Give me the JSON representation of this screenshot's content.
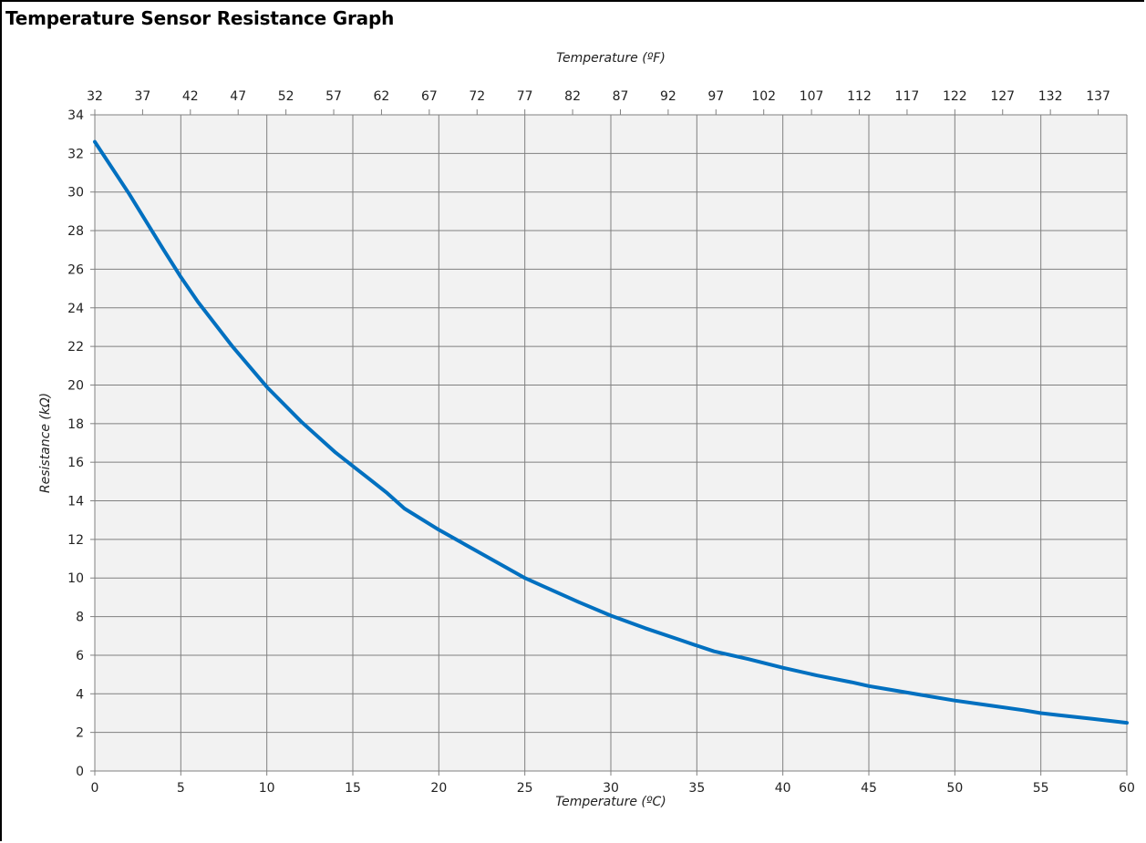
{
  "chart_data": {
    "type": "line",
    "title": "Temperature Sensor Resistance Graph",
    "xlabel": "Temperature (ºC)",
    "x2label": "Temperature (ºF)",
    "ylabel": "Resistance (kΩ)",
    "xlim": [
      0,
      60
    ],
    "ylim": [
      0,
      34
    ],
    "x_ticks": [
      "0",
      "5",
      "10",
      "15",
      "20",
      "25",
      "30",
      "35",
      "40",
      "45",
      "50",
      "55",
      "60"
    ],
    "y_ticks": [
      "0",
      "2",
      "4",
      "6",
      "8",
      "10",
      "12",
      "14",
      "16",
      "18",
      "20",
      "22",
      "24",
      "26",
      "28",
      "30",
      "32",
      "34"
    ],
    "x2_ticks": [
      "32",
      "37",
      "42",
      "47",
      "52",
      "57",
      "62",
      "67",
      "72",
      "77",
      "82",
      "87",
      "92",
      "97",
      "102",
      "107",
      "112",
      "117",
      "122",
      "127",
      "132",
      "137"
    ],
    "grid": true,
    "colors": {
      "line": "#0070C0",
      "plot_background": "#F2F2F2",
      "grid": "#808080"
    },
    "series": [
      {
        "x": [
          0,
          2,
          4,
          5,
          6,
          8,
          10,
          12,
          14,
          15,
          16,
          17,
          18,
          20,
          22,
          24,
          25,
          26,
          28,
          30,
          32,
          34,
          35,
          36,
          38,
          40,
          42,
          44,
          45,
          46,
          48,
          50,
          52,
          54,
          55,
          56,
          58,
          60
        ],
        "y": [
          32.6,
          29.9,
          27.0,
          25.6,
          24.3,
          22.0,
          19.9,
          18.1,
          16.5,
          15.8,
          15.1,
          14.4,
          13.6,
          12.5,
          11.5,
          10.5,
          10.0,
          9.6,
          8.8,
          8.05,
          7.4,
          6.8,
          6.5,
          6.2,
          5.8,
          5.35,
          4.95,
          4.6,
          4.4,
          4.25,
          3.95,
          3.65,
          3.4,
          3.15,
          3.0,
          2.9,
          2.7,
          2.5
        ]
      }
    ]
  }
}
